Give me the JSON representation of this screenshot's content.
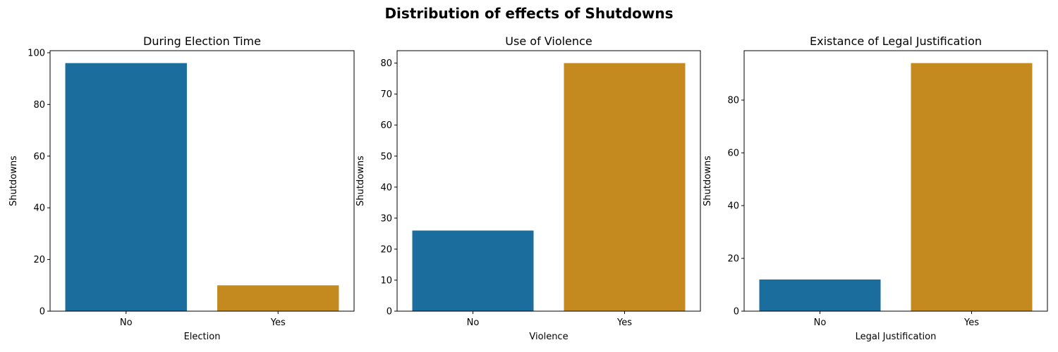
{
  "figure": {
    "suptitle": "Distribution of effects of Shutdowns"
  },
  "colors": {
    "no": "#1a6d9d",
    "yes": "#c4891f"
  },
  "chart_data": [
    {
      "type": "bar",
      "title": "During Election Time",
      "xlabel": "Election",
      "ylabel": "Shutdowns",
      "categories": [
        "No",
        "Yes"
      ],
      "values": [
        96,
        10
      ],
      "ylim": [
        0,
        100.8
      ],
      "yticks": [
        0,
        20,
        40,
        60,
        80,
        100
      ]
    },
    {
      "type": "bar",
      "title": "Use of Violence",
      "xlabel": "Violence",
      "ylabel": "Shutdowns",
      "categories": [
        "No",
        "Yes"
      ],
      "values": [
        26,
        80
      ],
      "ylim": [
        0,
        84
      ],
      "yticks": [
        0,
        10,
        20,
        30,
        40,
        50,
        60,
        70,
        80
      ]
    },
    {
      "type": "bar",
      "title": "Existance of Legal Justification",
      "xlabel": "Legal Justification",
      "ylabel": "Shutdowns",
      "categories": [
        "No",
        "Yes"
      ],
      "values": [
        12,
        94
      ],
      "ylim": [
        0,
        98.7
      ],
      "yticks": [
        0,
        20,
        40,
        60,
        80
      ]
    }
  ]
}
